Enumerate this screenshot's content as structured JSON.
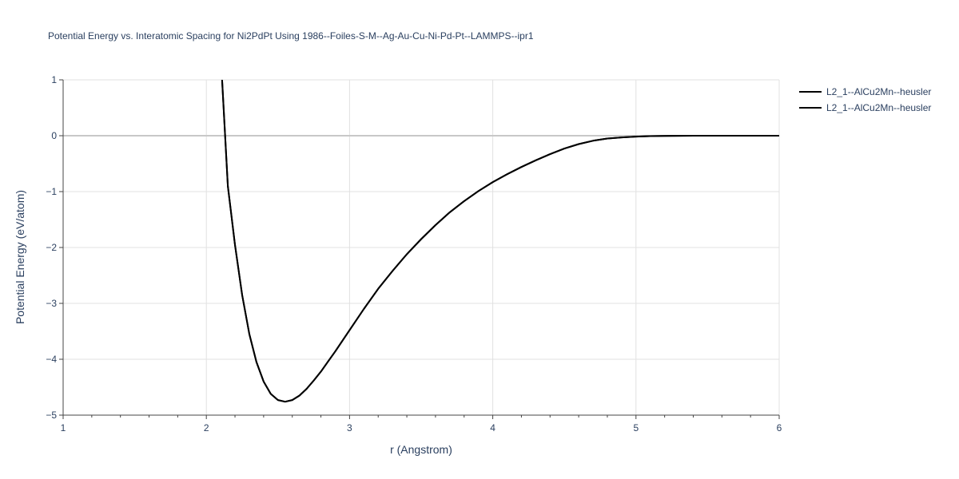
{
  "chart_data": {
    "type": "line",
    "title": "Potential Energy vs. Interatomic Spacing for Ni2PdPt Using 1986--Foiles-S-M--Ag-Au-Cu-Ni-Pd-Pt--LAMMPS--ipr1",
    "xlabel": "r (Angstrom)",
    "ylabel": "Potential Energy (eV/atom)",
    "xlim": [
      1,
      6
    ],
    "ylim": [
      -5,
      1
    ],
    "x_ticks": [
      1,
      2,
      3,
      4,
      5,
      6
    ],
    "y_ticks": [
      1,
      0,
      -1,
      -2,
      -3,
      -4,
      -5
    ],
    "x_tick_labels": [
      "1",
      "2",
      "3",
      "4",
      "5",
      "6"
    ],
    "y_tick_labels": [
      "1",
      "0",
      "−1",
      "−2",
      "−3",
      "−4",
      "−5"
    ],
    "grid": true,
    "legend_position": "top-right",
    "series": [
      {
        "name": "L2_1--AlCu2Mn--heusler",
        "color": "#000000",
        "x": [
          2.11,
          2.15,
          2.2,
          2.25,
          2.3,
          2.35,
          2.4,
          2.45,
          2.5,
          2.55,
          2.6,
          2.65,
          2.7,
          2.75,
          2.8,
          2.85,
          2.9,
          2.95,
          3.0,
          3.1,
          3.2,
          3.3,
          3.4,
          3.5,
          3.6,
          3.7,
          3.8,
          3.9,
          4.0,
          4.1,
          4.2,
          4.3,
          4.4,
          4.5,
          4.6,
          4.7,
          4.8,
          4.9,
          5.0,
          5.1,
          5.2,
          5.3,
          5.4,
          5.5,
          5.6,
          5.7,
          5.8,
          5.9,
          6.0
        ],
        "y": [
          1.0,
          -0.9,
          -1.95,
          -2.85,
          -3.55,
          -4.05,
          -4.4,
          -4.62,
          -4.73,
          -4.76,
          -4.73,
          -4.65,
          -4.53,
          -4.38,
          -4.22,
          -4.04,
          -3.86,
          -3.67,
          -3.48,
          -3.1,
          -2.74,
          -2.42,
          -2.12,
          -1.85,
          -1.6,
          -1.37,
          -1.17,
          -0.99,
          -0.83,
          -0.69,
          -0.56,
          -0.44,
          -0.33,
          -0.23,
          -0.15,
          -0.09,
          -0.05,
          -0.03,
          -0.015,
          -0.007,
          -0.003,
          -0.001,
          0.0,
          0.0,
          0.0,
          0.0,
          0.0,
          0.0,
          0.0
        ]
      },
      {
        "name": "L2_1--AlCu2Mn--heusler",
        "color": "#000000",
        "x": [
          2.11,
          2.15,
          2.2,
          2.25,
          2.3,
          2.35,
          2.4,
          2.45,
          2.5,
          2.55,
          2.6,
          2.65,
          2.7,
          2.75,
          2.8,
          2.85,
          2.9,
          2.95,
          3.0,
          3.1,
          3.2,
          3.3,
          3.4,
          3.5,
          3.6,
          3.7,
          3.8,
          3.9,
          4.0,
          4.1,
          4.2,
          4.3,
          4.4,
          4.5,
          4.6,
          4.7,
          4.8,
          4.9,
          5.0,
          5.1,
          5.2,
          5.3,
          5.4,
          5.5,
          5.6,
          5.7,
          5.8,
          5.9,
          6.0
        ],
        "y": [
          1.0,
          -0.9,
          -1.95,
          -2.85,
          -3.55,
          -4.05,
          -4.4,
          -4.62,
          -4.73,
          -4.76,
          -4.73,
          -4.65,
          -4.53,
          -4.38,
          -4.22,
          -4.04,
          -3.86,
          -3.67,
          -3.48,
          -3.1,
          -2.74,
          -2.42,
          -2.12,
          -1.85,
          -1.6,
          -1.37,
          -1.17,
          -0.99,
          -0.83,
          -0.69,
          -0.56,
          -0.44,
          -0.33,
          -0.23,
          -0.15,
          -0.09,
          -0.05,
          -0.03,
          -0.015,
          -0.007,
          -0.003,
          -0.001,
          0.0,
          0.0,
          0.0,
          0.0,
          0.0,
          0.0,
          0.0
        ]
      }
    ]
  }
}
